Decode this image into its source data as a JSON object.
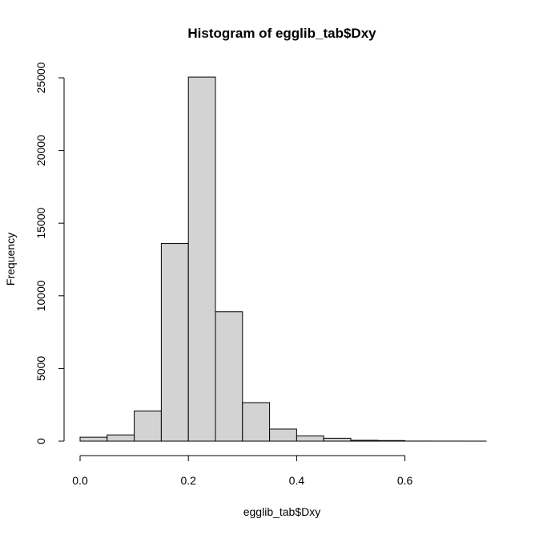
{
  "chart_data": {
    "type": "bar",
    "title": "Histogram of egglib_tab$Dxy",
    "xlabel": "egglib_tab$Dxy",
    "ylabel": "Frequency",
    "bins": [
      {
        "start": 0.0,
        "end": 0.05,
        "count": 270
      },
      {
        "start": 0.05,
        "end": 0.1,
        "count": 430
      },
      {
        "start": 0.1,
        "end": 0.15,
        "count": 2080
      },
      {
        "start": 0.15,
        "end": 0.2,
        "count": 13600
      },
      {
        "start": 0.2,
        "end": 0.25,
        "count": 25050
      },
      {
        "start": 0.25,
        "end": 0.3,
        "count": 8900
      },
      {
        "start": 0.3,
        "end": 0.35,
        "count": 2650
      },
      {
        "start": 0.35,
        "end": 0.4,
        "count": 830
      },
      {
        "start": 0.4,
        "end": 0.45,
        "count": 360
      },
      {
        "start": 0.45,
        "end": 0.5,
        "count": 200
      },
      {
        "start": 0.5,
        "end": 0.55,
        "count": 60
      },
      {
        "start": 0.55,
        "end": 0.6,
        "count": 40
      },
      {
        "start": 0.6,
        "end": 0.65,
        "count": 5
      },
      {
        "start": 0.65,
        "end": 0.7,
        "count": 3
      },
      {
        "start": 0.7,
        "end": 0.75,
        "count": 2
      }
    ],
    "x_ticks": [
      {
        "value": 0.0,
        "label": "0.0"
      },
      {
        "value": 0.2,
        "label": "0.2"
      },
      {
        "value": 0.4,
        "label": "0.4"
      },
      {
        "value": 0.6,
        "label": "0.6"
      }
    ],
    "y_ticks": [
      {
        "value": 0,
        "label": "0"
      },
      {
        "value": 5000,
        "label": "5000"
      },
      {
        "value": 10000,
        "label": "10000"
      },
      {
        "value": 15000,
        "label": "15000"
      },
      {
        "value": 20000,
        "label": "20000"
      },
      {
        "value": 25000,
        "label": "25000"
      }
    ],
    "xlim": [
      0.0,
      0.75
    ],
    "ylim": [
      0,
      25000
    ],
    "grid": false,
    "bar_color": "#d3d3d3",
    "edge_color": "#000000"
  }
}
